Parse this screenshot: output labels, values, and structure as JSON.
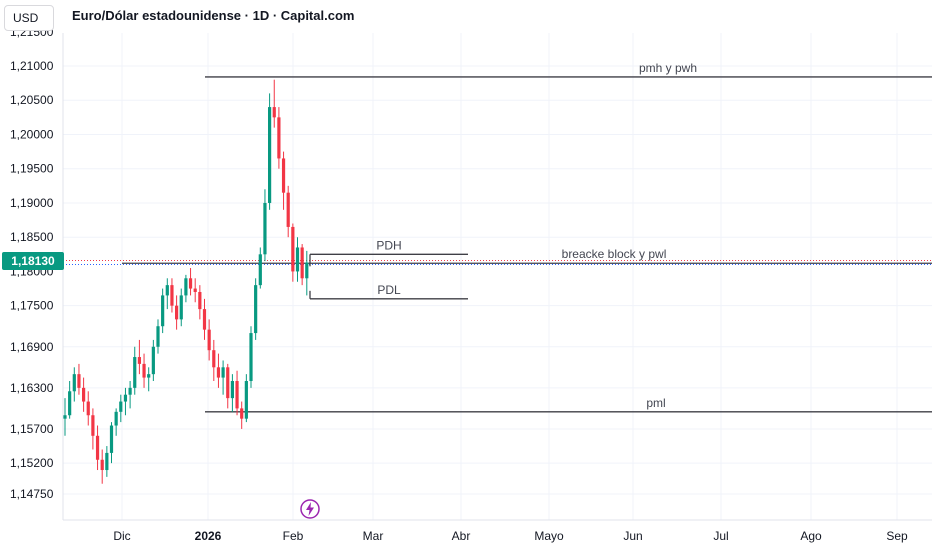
{
  "header": {
    "currency": "USD",
    "title": "Euro/Dólar estadounidense · 1D · Capital.com"
  },
  "price_tag": "1,18130",
  "chart_data": {
    "type": "candlestick",
    "y_ticks": [
      "1,21000",
      "1,20500",
      "1,20000",
      "1,19500",
      "1,19000",
      "1,18500",
      "1,17500",
      "1,16900",
      "1,16300",
      "1,15700",
      "1,15200",
      "1,14750"
    ],
    "partial_y_ticks": [
      "1,21500",
      "1,18000"
    ],
    "x_ticks": [
      "Dic",
      "2026",
      "Feb",
      "Mar",
      "Abr",
      "Mayo",
      "Jun",
      "Jul",
      "Ago",
      "Sep"
    ],
    "ylim": [
      1.1445,
      1.2155
    ],
    "current_price": 1.1813,
    "candles": [
      [
        1.1585,
        1.1615,
        1.156,
        1.159
      ],
      [
        1.159,
        1.164,
        1.1585,
        1.1625
      ],
      [
        1.1625,
        1.166,
        1.161,
        1.165
      ],
      [
        1.165,
        1.1665,
        1.162,
        1.163
      ],
      [
        1.163,
        1.1645,
        1.1595,
        1.161
      ],
      [
        1.161,
        1.1625,
        1.1575,
        1.159
      ],
      [
        1.159,
        1.16,
        1.154,
        1.156
      ],
      [
        1.156,
        1.1575,
        1.151,
        1.1525
      ],
      [
        1.1525,
        1.154,
        1.149,
        1.151
      ],
      [
        1.151,
        1.1545,
        1.15,
        1.1535
      ],
      [
        1.1535,
        1.158,
        1.152,
        1.1575
      ],
      [
        1.1575,
        1.16,
        1.156,
        1.1595
      ],
      [
        1.1595,
        1.162,
        1.158,
        1.161
      ],
      [
        1.161,
        1.163,
        1.159,
        1.162
      ],
      [
        1.162,
        1.164,
        1.16,
        1.163
      ],
      [
        1.163,
        1.169,
        1.162,
        1.1675
      ],
      [
        1.1675,
        1.17,
        1.165,
        1.1665
      ],
      [
        1.1665,
        1.168,
        1.163,
        1.1645
      ],
      [
        1.1645,
        1.166,
        1.1625,
        1.165
      ],
      [
        1.165,
        1.17,
        1.164,
        1.169
      ],
      [
        1.169,
        1.173,
        1.168,
        1.172
      ],
      [
        1.172,
        1.1775,
        1.171,
        1.1765
      ],
      [
        1.1765,
        1.179,
        1.1745,
        1.178
      ],
      [
        1.178,
        1.179,
        1.174,
        1.175
      ],
      [
        1.175,
        1.1765,
        1.1715,
        1.173
      ],
      [
        1.173,
        1.1775,
        1.172,
        1.1765
      ],
      [
        1.1765,
        1.1795,
        1.1755,
        1.179
      ],
      [
        1.179,
        1.1805,
        1.1765,
        1.1775
      ],
      [
        1.1775,
        1.179,
        1.1755,
        1.177
      ],
      [
        1.177,
        1.178,
        1.173,
        1.1745
      ],
      [
        1.1745,
        1.176,
        1.17,
        1.1715
      ],
      [
        1.1715,
        1.173,
        1.167,
        1.1685
      ],
      [
        1.1685,
        1.17,
        1.164,
        1.166
      ],
      [
        1.166,
        1.168,
        1.163,
        1.1645
      ],
      [
        1.1645,
        1.167,
        1.162,
        1.166
      ],
      [
        1.166,
        1.1665,
        1.16,
        1.1615
      ],
      [
        1.1615,
        1.165,
        1.1595,
        1.164
      ],
      [
        1.164,
        1.1655,
        1.159,
        1.16
      ],
      [
        1.16,
        1.161,
        1.157,
        1.1585
      ],
      [
        1.1585,
        1.165,
        1.158,
        1.164
      ],
      [
        1.164,
        1.172,
        1.163,
        1.171
      ],
      [
        1.171,
        1.179,
        1.17,
        1.178
      ],
      [
        1.178,
        1.1835,
        1.1775,
        1.1825
      ],
      [
        1.1825,
        1.192,
        1.1815,
        1.19
      ],
      [
        1.19,
        1.206,
        1.189,
        1.204
      ],
      [
        1.204,
        1.208,
        1.201,
        1.2025
      ],
      [
        1.2025,
        1.204,
        1.195,
        1.1965
      ],
      [
        1.1965,
        1.1975,
        1.189,
        1.1915
      ],
      [
        1.1915,
        1.1925,
        1.185,
        1.1865
      ],
      [
        1.1865,
        1.187,
        1.1785,
        1.18
      ],
      [
        1.18,
        1.185,
        1.1785,
        1.1835
      ],
      [
        1.1835,
        1.184,
        1.178,
        1.179
      ],
      [
        1.179,
        1.183,
        1.1765,
        1.1813
      ]
    ],
    "levels": [
      {
        "label": "pmh y pwh",
        "value": 1.2084
      },
      {
        "label": "breacke block y pwl",
        "value": 1.1812
      },
      {
        "label": "PDH",
        "value": 1.1825
      },
      {
        "label": "PDL",
        "value": 1.176
      },
      {
        "label": "pml",
        "value": 1.1595
      }
    ]
  },
  "colors": {
    "up": "#089981",
    "down": "#f23645",
    "level_line": "#3f3f46",
    "grid": "#f0f3fa",
    "bolt": "#9c27b0"
  }
}
